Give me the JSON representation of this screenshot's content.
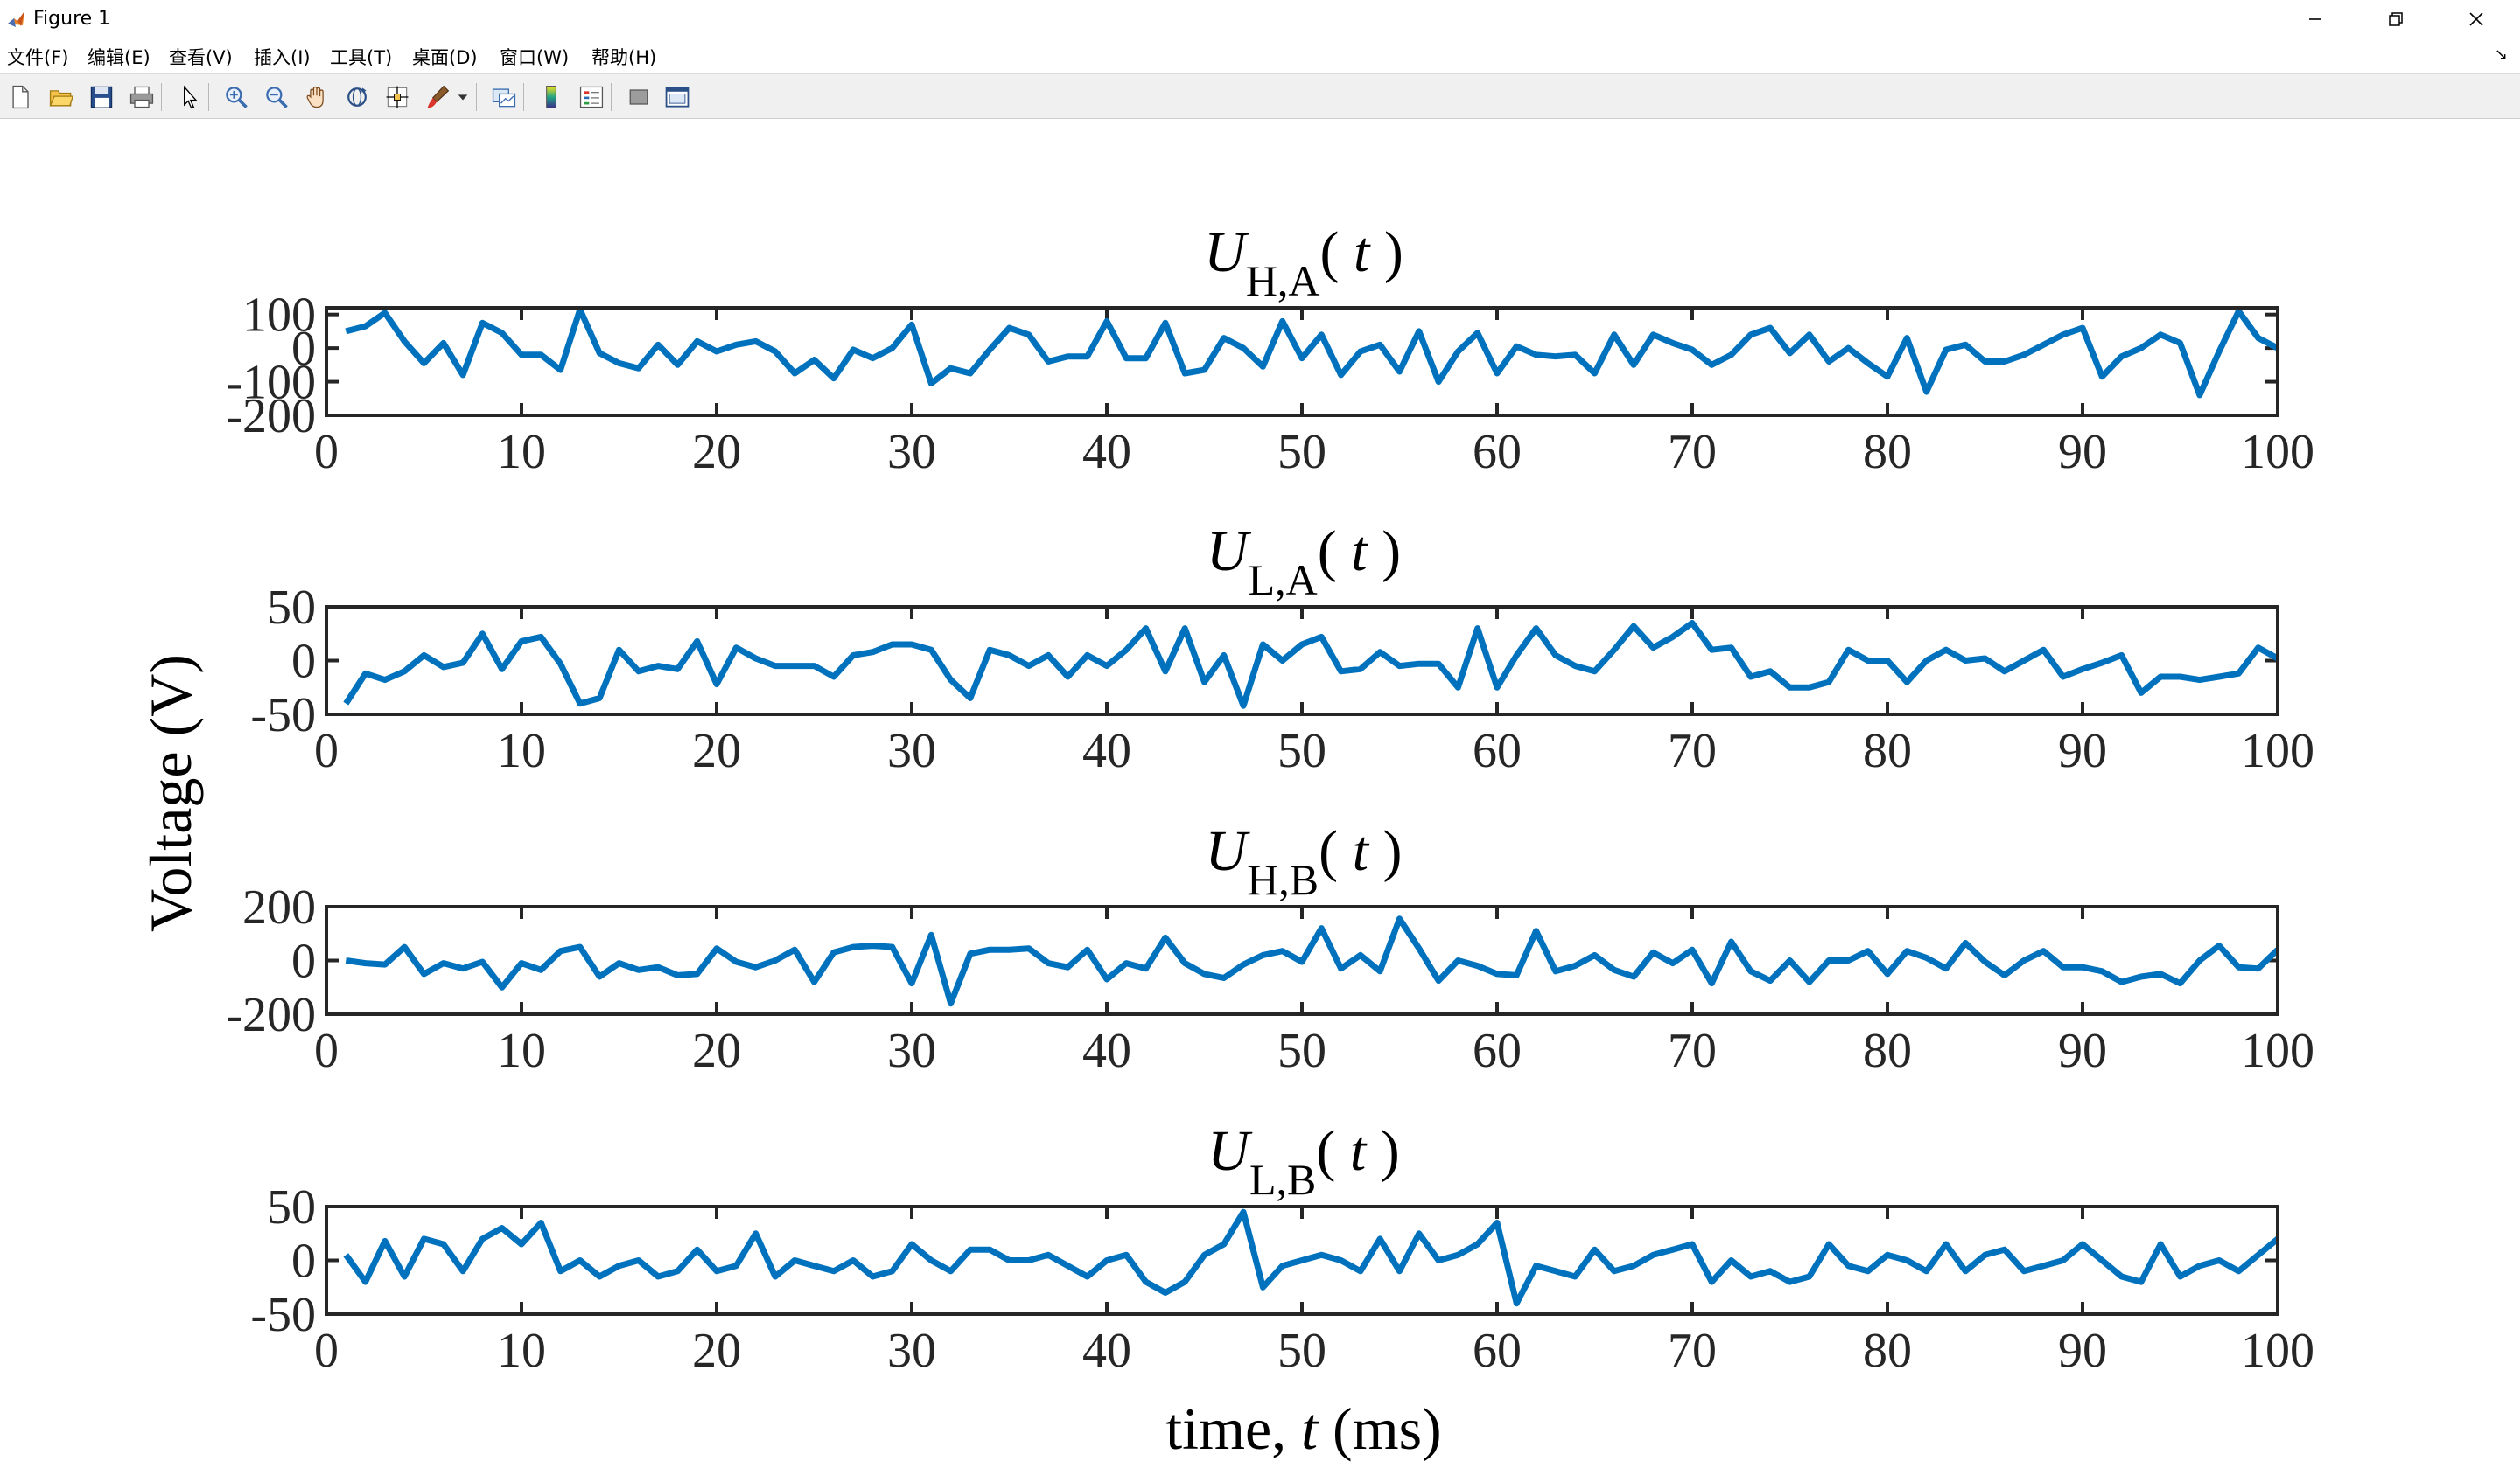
{
  "window": {
    "title": "Figure 1"
  },
  "menu": [
    "文件(F)",
    "编辑(E)",
    "查看(V)",
    "插入(I)",
    "工具(T)",
    "桌面(D)",
    "窗口(W)",
    "帮助(H)"
  ],
  "toolbar": [
    "new-file-icon",
    "open-folder-icon",
    "save-icon",
    "print-icon",
    "sep",
    "pointer-icon",
    "sep",
    "zoom-in-icon",
    "zoom-out-icon",
    "pan-hand-icon",
    "rotate-3d-icon",
    "data-cursor-icon",
    "brush-icon",
    "brush-dropdown-icon",
    "sep",
    "link-plot-icon",
    "sep",
    "colorbar-icon",
    "legend-icon",
    "sep",
    "hide-plot-tools-icon",
    "show-plot-tools-icon"
  ],
  "colors": {
    "line": "#0072BD",
    "axes": "#262626"
  },
  "chart_data": {
    "type": "line",
    "xlabel": "time, t (ms)",
    "ylabel": "Voltage (V)",
    "xlim": [
      0,
      100
    ],
    "xticks": [
      0,
      10,
      20,
      30,
      40,
      50,
      60,
      70,
      80,
      90,
      100
    ],
    "subplots": [
      {
        "title": {
          "main": "U",
          "sub": "H,A",
          "arg": "( t )"
        },
        "ylim": [
          -200,
          120
        ],
        "yticks": [
          100,
          0,
          -100,
          -200
        ],
        "x": [
          1,
          2,
          3,
          4,
          5,
          6,
          7,
          8,
          9,
          10,
          11,
          12,
          13,
          14,
          15,
          16,
          17,
          18,
          19,
          20,
          21,
          22,
          23,
          24,
          25,
          26,
          27,
          28,
          29,
          30,
          31,
          32,
          33,
          34,
          35,
          36,
          37,
          38,
          39,
          40,
          41,
          42,
          43,
          44,
          45,
          46,
          47,
          48,
          49,
          50,
          51,
          52,
          53,
          54,
          55,
          56,
          57,
          58,
          59,
          60,
          61,
          62,
          63,
          64,
          65,
          66,
          67,
          68,
          69,
          70,
          71,
          72,
          73,
          74,
          75,
          76,
          77,
          78,
          79,
          80,
          81,
          82,
          83,
          84,
          85,
          86,
          87,
          88,
          89,
          90,
          91,
          92,
          93,
          94,
          95,
          96,
          97,
          98,
          99,
          100
        ],
        "values": [
          50,
          65,
          105,
          20,
          -45,
          15,
          -80,
          75,
          45,
          -20,
          -20,
          -65,
          115,
          -15,
          -45,
          -60,
          10,
          -50,
          20,
          -10,
          10,
          20,
          -10,
          -75,
          -35,
          -90,
          -5,
          -30,
          0,
          70,
          -105,
          -60,
          -75,
          -5,
          60,
          40,
          -40,
          -25,
          -25,
          80,
          -30,
          -30,
          75,
          -75,
          -65,
          30,
          0,
          -55,
          80,
          -30,
          40,
          -80,
          -10,
          10,
          -70,
          50,
          -100,
          -10,
          45,
          -75,
          5,
          -20,
          -25,
          -20,
          -75,
          40,
          -50,
          40,
          15,
          -5,
          -50,
          -20,
          40,
          60,
          -15,
          40,
          -40,
          0,
          -45,
          -85,
          30,
          -130,
          -5,
          10,
          -40,
          -40,
          -20,
          10,
          40,
          60,
          -85,
          -25,
          0,
          40,
          15,
          -140,
          -10,
          110,
          30,
          0
        ],
        "line_color": "#0072BD"
      },
      {
        "title": {
          "main": "U",
          "sub": "L,A",
          "arg": "( t )"
        },
        "ylim": [
          -50,
          50
        ],
        "yticks": [
          50,
          0,
          -50
        ],
        "x": [
          1,
          2,
          3,
          4,
          5,
          6,
          7,
          8,
          9,
          10,
          11,
          12,
          13,
          14,
          15,
          16,
          17,
          18,
          19,
          20,
          21,
          22,
          23,
          24,
          25,
          26,
          27,
          28,
          29,
          30,
          31,
          32,
          33,
          34,
          35,
          36,
          37,
          38,
          39,
          40,
          41,
          42,
          43,
          44,
          45,
          46,
          47,
          48,
          49,
          50,
          51,
          52,
          53,
          54,
          55,
          56,
          57,
          58,
          59,
          60,
          61,
          62,
          63,
          64,
          65,
          66,
          67,
          68,
          69,
          70,
          71,
          72,
          73,
          74,
          75,
          76,
          77,
          78,
          79,
          80,
          81,
          82,
          83,
          84,
          85,
          86,
          87,
          88,
          89,
          90,
          91,
          92,
          93,
          94,
          95,
          96,
          97,
          98,
          99,
          100
        ],
        "values": [
          -40,
          -12,
          -18,
          -10,
          5,
          -6,
          -2,
          25,
          -8,
          18,
          22,
          -3,
          -40,
          -35,
          10,
          -10,
          -5,
          -8,
          18,
          -22,
          12,
          2,
          -5,
          -5,
          -5,
          -15,
          5,
          8,
          15,
          15,
          10,
          -18,
          -35,
          10,
          5,
          -5,
          5,
          -15,
          5,
          -5,
          10,
          30,
          -10,
          30,
          -20,
          5,
          -42,
          15,
          0,
          15,
          22,
          -10,
          -8,
          8,
          -5,
          -3,
          -3,
          -25,
          30,
          -25,
          5,
          30,
          5,
          -5,
          -10,
          10,
          32,
          12,
          22,
          35,
          10,
          12,
          -15,
          -10,
          -25,
          -25,
          -20,
          10,
          0,
          0,
          -20,
          0,
          10,
          0,
          2,
          -10,
          0,
          10,
          -15,
          -8,
          -2,
          5,
          -30,
          -15,
          -15,
          -18,
          -15,
          -12,
          12,
          2
        ],
        "line_color": "#0072BD"
      },
      {
        "title": {
          "main": "U",
          "sub": "H,B",
          "arg": "( t )"
        },
        "ylim": [
          -200,
          200
        ],
        "yticks": [
          200,
          0,
          -200
        ],
        "x": [
          1,
          2,
          3,
          4,
          5,
          6,
          7,
          8,
          9,
          10,
          11,
          12,
          13,
          14,
          15,
          16,
          17,
          18,
          19,
          20,
          21,
          22,
          23,
          24,
          25,
          26,
          27,
          28,
          29,
          30,
          31,
          32,
          33,
          34,
          35,
          36,
          37,
          38,
          39,
          40,
          41,
          42,
          43,
          44,
          45,
          46,
          47,
          48,
          49,
          50,
          51,
          52,
          53,
          54,
          55,
          56,
          57,
          58,
          59,
          60,
          61,
          62,
          63,
          64,
          65,
          66,
          67,
          68,
          69,
          70,
          71,
          72,
          73,
          74,
          75,
          76,
          77,
          78,
          79,
          80,
          81,
          82,
          83,
          84,
          85,
          86,
          87,
          88,
          89,
          90,
          91,
          92,
          93,
          94,
          95,
          96,
          97,
          98,
          99,
          100
        ],
        "values": [
          0,
          -10,
          -15,
          50,
          -50,
          -10,
          -30,
          -5,
          -100,
          -10,
          -35,
          35,
          50,
          -60,
          -10,
          -35,
          -25,
          -55,
          -50,
          45,
          -5,
          -25,
          0,
          40,
          -80,
          30,
          50,
          55,
          50,
          -85,
          95,
          -160,
          25,
          40,
          40,
          45,
          -10,
          -25,
          40,
          -70,
          -10,
          -30,
          85,
          -10,
          -50,
          -65,
          -15,
          20,
          35,
          -5,
          120,
          -30,
          20,
          -40,
          155,
          45,
          -75,
          0,
          -20,
          -50,
          -55,
          110,
          -40,
          -20,
          20,
          -35,
          -60,
          30,
          -10,
          40,
          -85,
          70,
          -40,
          -75,
          0,
          -80,
          0,
          0,
          35,
          -50,
          35,
          10,
          -30,
          65,
          -5,
          -55,
          0,
          35,
          -25,
          -25,
          -40,
          -80,
          -60,
          -50,
          -85,
          0,
          55,
          -25,
          -30,
          40
        ],
        "line_color": "#0072BD"
      },
      {
        "title": {
          "main": "U",
          "sub": "L,B",
          "arg": "( t )"
        },
        "ylim": [
          -50,
          50
        ],
        "yticks": [
          50,
          0,
          -50
        ],
        "x": [
          1,
          2,
          3,
          4,
          5,
          6,
          7,
          8,
          9,
          10,
          11,
          12,
          13,
          14,
          15,
          16,
          17,
          18,
          19,
          20,
          21,
          22,
          23,
          24,
          25,
          26,
          27,
          28,
          29,
          30,
          31,
          32,
          33,
          34,
          35,
          36,
          37,
          38,
          39,
          40,
          41,
          42,
          43,
          44,
          45,
          46,
          47,
          48,
          49,
          50,
          51,
          52,
          53,
          54,
          55,
          56,
          57,
          58,
          59,
          60,
          61,
          62,
          63,
          64,
          65,
          66,
          67,
          68,
          69,
          70,
          71,
          72,
          73,
          74,
          75,
          76,
          77,
          78,
          79,
          80,
          81,
          82,
          83,
          84,
          85,
          86,
          87,
          88,
          89,
          90,
          91,
          92,
          93,
          94,
          95,
          96,
          97,
          98,
          99,
          100
        ],
        "values": [
          5,
          -20,
          18,
          -15,
          20,
          15,
          -10,
          20,
          30,
          15,
          35,
          -10,
          0,
          -15,
          -5,
          0,
          -15,
          -10,
          10,
          -10,
          -5,
          25,
          -15,
          0,
          -5,
          -10,
          0,
          -15,
          -10,
          15,
          0,
          -10,
          10,
          10,
          0,
          0,
          5,
          -5,
          -15,
          0,
          5,
          -20,
          -30,
          -20,
          5,
          15,
          45,
          -25,
          -5,
          0,
          5,
          0,
          -10,
          20,
          -10,
          25,
          0,
          5,
          15,
          35,
          -40,
          -5,
          -10,
          -15,
          10,
          -10,
          -5,
          5,
          10,
          15,
          -20,
          0,
          -15,
          -10,
          -20,
          -15,
          15,
          -5,
          -10,
          5,
          0,
          -10,
          15,
          -10,
          5,
          10,
          -10,
          -5,
          0,
          15,
          0,
          -15,
          -20,
          15,
          -15,
          -5,
          0,
          -10,
          5,
          20
        ],
        "line_color": "#0072BD"
      }
    ]
  }
}
